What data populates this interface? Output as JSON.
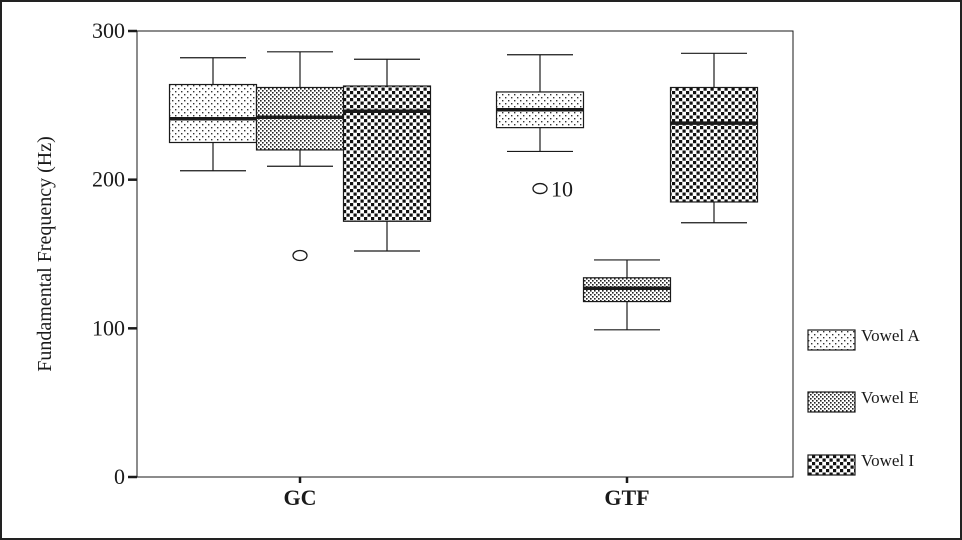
{
  "chart_data": {
    "type": "box",
    "title": "",
    "ylabel": "Fundamental Frequency (Hz)",
    "xlabel": "",
    "ylim": [
      0,
      300
    ],
    "yticks": [
      "0",
      "100",
      "200",
      "300"
    ],
    "categories": [
      "GC",
      "GTF"
    ],
    "legend_position": "right",
    "series": [
      {
        "name": "Vowel A",
        "pattern": "sparse-dots",
        "boxes": [
          {
            "category": "GC",
            "min": 206,
            "q1": 225,
            "median": 241,
            "q3": 264,
            "max": 282,
            "outliers": []
          },
          {
            "category": "GTF",
            "min": 219,
            "q1": 235,
            "median": 247,
            "q3": 259,
            "max": 284,
            "outliers": [
              {
                "value": 194,
                "label": "10"
              }
            ]
          }
        ]
      },
      {
        "name": "Vowel E",
        "pattern": "dense-dots",
        "boxes": [
          {
            "category": "GC",
            "min": 209,
            "q1": 220,
            "median": 242,
            "q3": 262,
            "max": 286,
            "outliers": [
              {
                "value": 149,
                "label": ""
              }
            ]
          },
          {
            "category": "GTF",
            "min": 99,
            "q1": 118,
            "median": 127,
            "q3": 134,
            "max": 146,
            "outliers": []
          }
        ]
      },
      {
        "name": "Vowel I",
        "pattern": "coarse-squares",
        "boxes": [
          {
            "category": "GC",
            "min": 152,
            "q1": 172,
            "median": 246,
            "q3": 263,
            "max": 281,
            "outliers": []
          },
          {
            "category": "GTF",
            "min": 171,
            "q1": 185,
            "median": 238,
            "q3": 262,
            "max": 285,
            "outliers": []
          }
        ]
      }
    ]
  },
  "colors": {
    "ink": "#1a1a1a",
    "background": "#ffffff"
  }
}
